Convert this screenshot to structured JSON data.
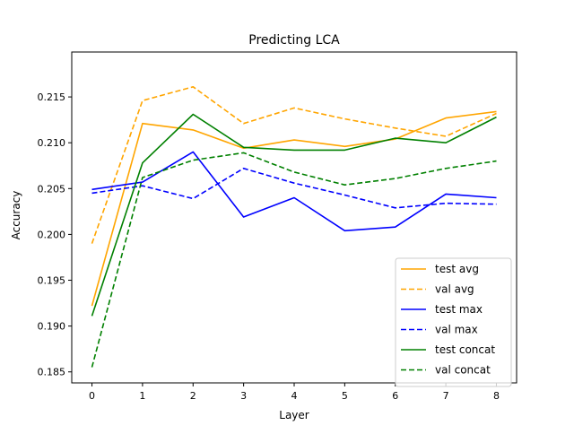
{
  "chart_data": {
    "type": "line",
    "title": "Predicting LCA",
    "xlabel": "Layer",
    "ylabel": "Accuracy",
    "x": [
      0,
      1,
      2,
      3,
      4,
      5,
      6,
      7,
      8
    ],
    "xlim": [
      -0.4,
      8.4
    ],
    "ylim": [
      0.1838,
      0.2199
    ],
    "xticks": [
      "0",
      "1",
      "2",
      "3",
      "4",
      "5",
      "6",
      "7",
      "8"
    ],
    "yticks": [
      "0.185",
      "0.190",
      "0.195",
      "0.200",
      "0.205",
      "0.210",
      "0.215"
    ],
    "ytick_values": [
      0.185,
      0.19,
      0.195,
      0.2,
      0.205,
      0.21,
      0.215
    ],
    "grid": false,
    "legend_position": "lower-right",
    "series": [
      {
        "name": "test avg",
        "color": "#ffa500",
        "dash": false,
        "values": [
          0.1922,
          0.2121,
          0.2114,
          0.2094,
          0.2103,
          0.2096,
          0.2104,
          0.2127,
          0.2134
        ]
      },
      {
        "name": "val avg",
        "color": "#ffa500",
        "dash": true,
        "values": [
          0.199,
          0.2146,
          0.2161,
          0.2121,
          0.2138,
          0.2126,
          0.2116,
          0.2107,
          0.2132
        ]
      },
      {
        "name": "test max",
        "color": "#0000ff",
        "dash": false,
        "values": [
          0.2049,
          0.2057,
          0.209,
          0.2019,
          0.204,
          0.2004,
          0.2008,
          0.2044,
          0.204
        ]
      },
      {
        "name": "val max",
        "color": "#0000ff",
        "dash": true,
        "values": [
          0.2045,
          0.2053,
          0.2039,
          0.2072,
          0.2056,
          0.2043,
          0.2029,
          0.2034,
          0.2033
        ]
      },
      {
        "name": "test concat",
        "color": "#008000",
        "dash": false,
        "values": [
          0.1911,
          0.2078,
          0.2131,
          0.2095,
          0.2092,
          0.2092,
          0.2105,
          0.21,
          0.2128
        ]
      },
      {
        "name": "val concat",
        "color": "#008000",
        "dash": true,
        "values": [
          0.1855,
          0.2062,
          0.2081,
          0.2089,
          0.2068,
          0.2054,
          0.2061,
          0.2072,
          0.208
        ]
      }
    ]
  }
}
